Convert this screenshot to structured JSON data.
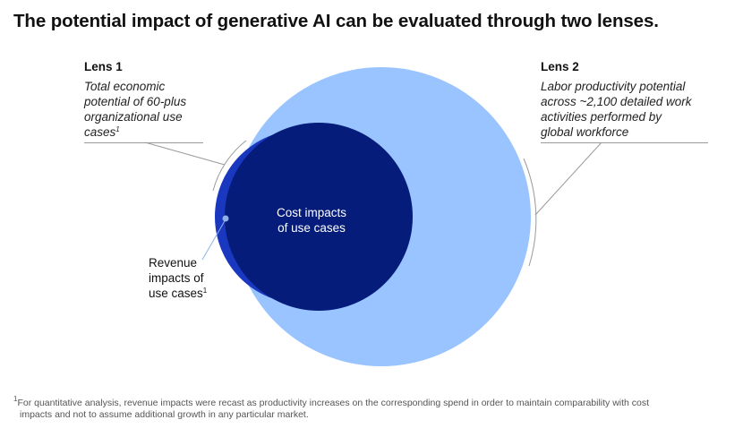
{
  "title": "The potential impact of generative AI can be evaluated through two lenses.",
  "lens1": {
    "heading": "Lens 1",
    "description_lines": [
      "Total economic",
      "potential of 60-plus",
      "organizational use",
      "cases"
    ],
    "footnote_mark": "1"
  },
  "lens2": {
    "heading": "Lens 2",
    "description_lines": [
      "Labor productivity potential",
      "across ~2,100 detailed work",
      "activities performed by",
      "global workforce"
    ]
  },
  "circles": {
    "cost_label_lines": [
      "Cost impacts",
      "of use cases"
    ],
    "revenue_label_lines": [
      "Revenue",
      "impacts of",
      "use cases"
    ],
    "revenue_footnote_mark": "1"
  },
  "colors": {
    "lens2_circle": "#99C4FF",
    "revenue_circle": "#1A37BF",
    "cost_circle": "#051C7A",
    "leader_line": "#9a9a9a",
    "revenue_dot": "#8FB0E8"
  },
  "footnote": {
    "mark": "1",
    "lines": [
      "For quantitative analysis, revenue impacts were recast as productivity increases on the corresponding spend in order to maintain comparability with cost",
      "impacts and not to assume additional growth in any particular market."
    ]
  }
}
